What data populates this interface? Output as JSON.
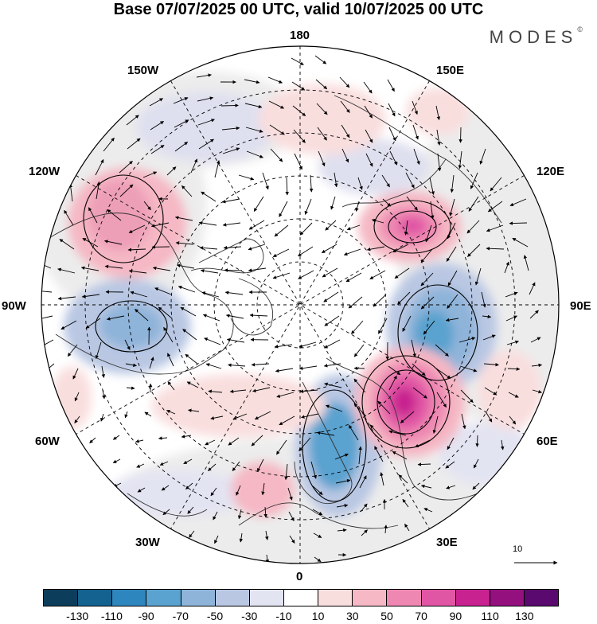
{
  "title": "Base 07/07/2025 00 UTC, valid 10/07/2025 00 UTC",
  "brand": "MODES",
  "brand_mark": "©",
  "longitude_labels": {
    "n180": "180",
    "e150": "150E",
    "e120": "120E",
    "e90": "90E",
    "e60": "60E",
    "e30": "30E",
    "s0": "0",
    "w30": "30W",
    "w60": "60W",
    "w90": "90W",
    "w120": "120W",
    "w150": "150W"
  },
  "reference_vector_label": "10",
  "colorbar": {
    "colors": [
      "#0c3e5c",
      "#14628f",
      "#2e86bf",
      "#5aa2cf",
      "#8fb4d9",
      "#b9c7e3",
      "#e3e4f2",
      "#ffffff",
      "#f9dede",
      "#f5b8c4",
      "#ee88b2",
      "#e055a4",
      "#c7228f",
      "#95107f",
      "#5a0a6e"
    ],
    "tick_labels": [
      "-130",
      "-110",
      "-90",
      "-70",
      "-50",
      "-30",
      "-10",
      "10",
      "30",
      "50",
      "70",
      "90",
      "110",
      "130"
    ]
  }
}
